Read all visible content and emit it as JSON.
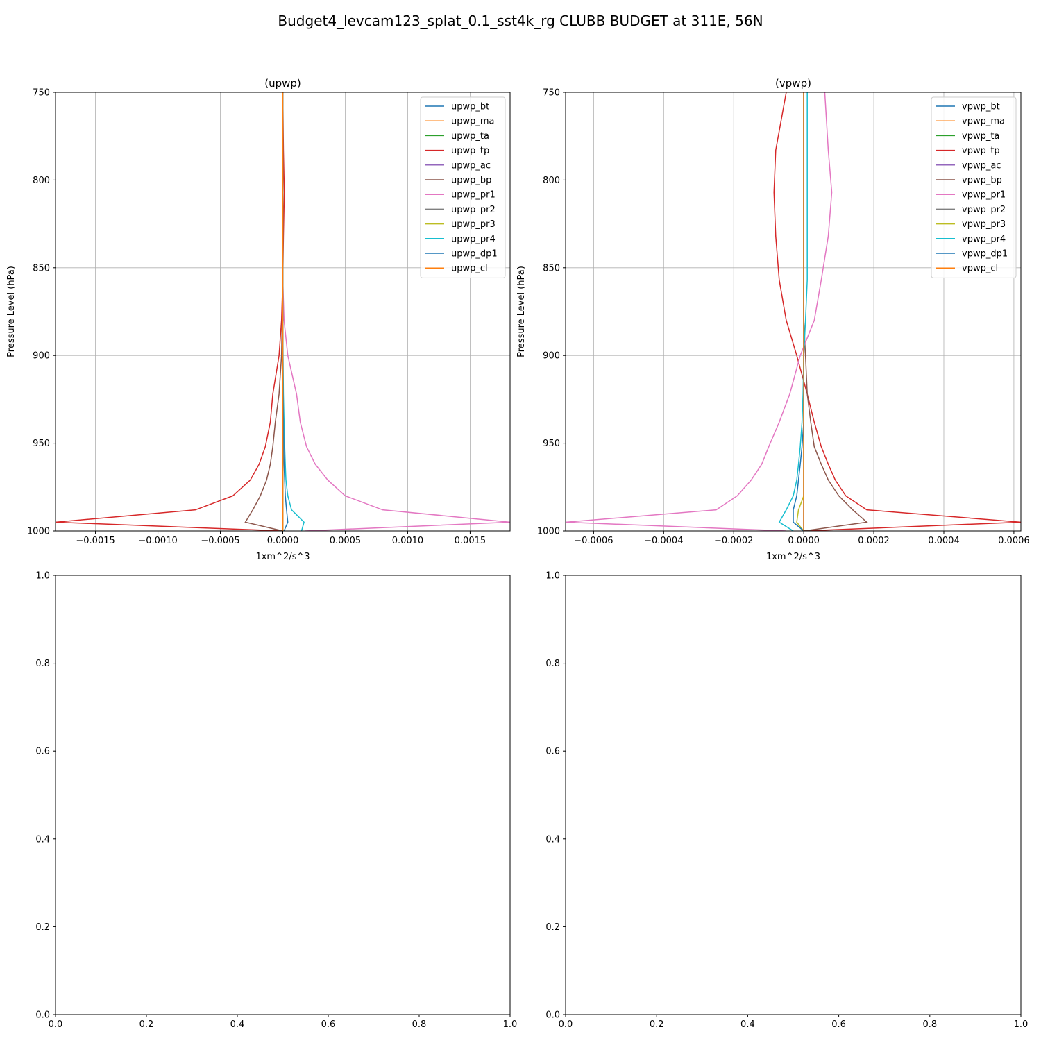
{
  "figure": {
    "title": "Budget4_levcam123_splat_0.1_sst4k_rg CLUBB BUDGET at 311E, 56N"
  },
  "chart_data": [
    {
      "type": "line",
      "title": "(upwp)",
      "xlabel": "1xm^2/s^3",
      "ylabel": "Pressure Level (hPa)",
      "xlim": [
        -0.00182,
        0.00182
      ],
      "ylim": [
        1000,
        750
      ],
      "y_inverted": true,
      "grid": true,
      "legend_position": "top-right",
      "xticks": [
        -0.0015,
        -0.001,
        -0.0005,
        0,
        0.0005,
        0.001,
        0.0015
      ],
      "xtick_labels": [
        "−0.0015",
        "−0.0010",
        "−0.0005",
        "0.0000",
        "0.0005",
        "0.0010",
        "0.0015"
      ],
      "yticks": [
        750,
        800,
        850,
        900,
        950,
        1000
      ],
      "ytick_labels": [
        "750",
        "800",
        "850",
        "900",
        "950",
        "1000"
      ],
      "levels": [
        750,
        783,
        807,
        832,
        857,
        880,
        900,
        922,
        938,
        952,
        962,
        971,
        980,
        988,
        995,
        1000
      ],
      "series": [
        {
          "name": "upwp_bt",
          "color": "#1f77b4",
          "values": [
            0,
            0,
            0,
            0,
            0,
            0,
            0,
            0,
            0,
            0,
            0,
            0,
            0,
            0,
            0,
            0
          ]
        },
        {
          "name": "upwp_ma",
          "color": "#ff7f0e",
          "values": [
            0,
            0,
            0,
            0,
            0,
            0,
            0,
            0,
            0,
            0,
            0,
            0,
            0,
            0,
            0,
            0
          ]
        },
        {
          "name": "upwp_ta",
          "color": "#2ca02c",
          "values": [
            0,
            0,
            0,
            0,
            0,
            0,
            0,
            0,
            0,
            0,
            0,
            0,
            0,
            0,
            0,
            0
          ]
        },
        {
          "name": "upwp_tp",
          "color": "#d62728",
          "values": [
            0,
            5e-06,
            1.2e-05,
            5e-06,
            0,
            -1e-05,
            -3e-05,
            -8e-05,
            -0.0001,
            -0.00014,
            -0.00019,
            -0.00026,
            -0.0004,
            -0.0007,
            -0.00182,
            0
          ]
        },
        {
          "name": "upwp_ac",
          "color": "#9467bd",
          "values": [
            0,
            0,
            0,
            0,
            0,
            0,
            0,
            0,
            0,
            0,
            0,
            0,
            0,
            0,
            0,
            0
          ]
        },
        {
          "name": "upwp_bp",
          "color": "#8c564b",
          "values": [
            0,
            0,
            0,
            0,
            0,
            -5e-06,
            -1e-05,
            -3e-05,
            -6e-05,
            -8e-05,
            -0.0001,
            -0.00013,
            -0.00018,
            -0.00024,
            -0.0003,
            0
          ]
        },
        {
          "name": "upwp_pr1",
          "color": "#e377c2",
          "values": [
            0,
            0,
            0,
            0,
            0,
            1e-05,
            4e-05,
            0.00011,
            0.00014,
            0.00019,
            0.00026,
            0.00036,
            0.0005,
            0.0008,
            0.00182,
            0.00018
          ]
        },
        {
          "name": "upwp_pr2",
          "color": "#7f7f7f",
          "values": [
            0,
            0,
            0,
            0,
            0,
            0,
            0,
            0,
            0,
            0,
            0,
            0,
            0,
            0,
            0,
            0
          ]
        },
        {
          "name": "upwp_pr3",
          "color": "#bcbd22",
          "values": [
            0,
            0,
            0,
            0,
            0,
            0,
            0,
            0,
            0,
            0,
            0,
            0,
            0,
            0,
            0,
            0
          ]
        },
        {
          "name": "upwp_pr4",
          "color": "#17becf",
          "values": [
            0,
            0,
            0,
            0,
            0,
            0,
            2e-06,
            5e-06,
            1e-05,
            1.5e-05,
            2e-05,
            2.5e-05,
            4e-05,
            7e-05,
            0.00017,
            0.00015
          ]
        },
        {
          "name": "upwp_dp1",
          "color": "#1f77b4",
          "values": [
            0,
            0,
            0,
            0,
            0,
            0,
            0,
            2e-06,
            5e-06,
            8e-06,
            1e-05,
            1.5e-05,
            2e-05,
            3e-05,
            4e-05,
            1e-05
          ]
        },
        {
          "name": "upwp_cl",
          "color": "#ff7f0e",
          "values": [
            0,
            0,
            0,
            0,
            0,
            0,
            0,
            0,
            0,
            0,
            0,
            0,
            0,
            0,
            0,
            0
          ]
        }
      ]
    },
    {
      "type": "line",
      "title": "(vpwp)",
      "xlabel": "1xm^2/s^3",
      "ylabel": "Pressure Level (hPa)",
      "xlim": [
        -0.00068,
        0.00062
      ],
      "ylim": [
        1000,
        750
      ],
      "y_inverted": true,
      "grid": true,
      "legend_position": "top-right",
      "xticks": [
        -0.0006,
        -0.0004,
        -0.0002,
        0,
        0.0002,
        0.0004,
        0.0006
      ],
      "xtick_labels": [
        "−0.0006",
        "−0.0004",
        "−0.0002",
        "0.0000",
        "0.0002",
        "0.0004",
        "0.0006"
      ],
      "yticks": [
        750,
        800,
        850,
        900,
        950,
        1000
      ],
      "ytick_labels": [
        "750",
        "800",
        "850",
        "900",
        "950",
        "1000"
      ],
      "levels": [
        750,
        783,
        807,
        832,
        857,
        880,
        900,
        922,
        938,
        952,
        962,
        971,
        980,
        988,
        995,
        1000
      ],
      "series": [
        {
          "name": "vpwp_bt",
          "color": "#1f77b4",
          "values": [
            0,
            0,
            0,
            0,
            0,
            0,
            0,
            0,
            0,
            0,
            0,
            0,
            0,
            0,
            0,
            0
          ]
        },
        {
          "name": "vpwp_ma",
          "color": "#ff7f0e",
          "values": [
            0,
            0,
            0,
            0,
            0,
            0,
            0,
            0,
            0,
            0,
            0,
            0,
            0,
            0,
            0,
            0
          ]
        },
        {
          "name": "vpwp_ta",
          "color": "#2ca02c",
          "values": [
            0,
            0,
            0,
            0,
            0,
            0,
            0,
            0,
            0,
            0,
            0,
            0,
            0,
            0,
            0,
            0
          ]
        },
        {
          "name": "vpwp_tp",
          "color": "#d62728",
          "values": [
            -5e-05,
            -8e-05,
            -8.5e-05,
            -8e-05,
            -7e-05,
            -5e-05,
            -2e-05,
            1e-05,
            3e-05,
            5e-05,
            7e-05,
            9e-05,
            0.00012,
            0.00018,
            0.00062,
            0
          ]
        },
        {
          "name": "vpwp_ac",
          "color": "#9467bd",
          "values": [
            0,
            0,
            0,
            0,
            0,
            0,
            0,
            0,
            0,
            0,
            0,
            0,
            0,
            0,
            0,
            0
          ]
        },
        {
          "name": "vpwp_bp",
          "color": "#8c564b",
          "values": [
            0,
            0,
            0,
            0,
            0,
            0,
            5e-06,
            1e-05,
            2e-05,
            3e-05,
            5e-05,
            7e-05,
            0.0001,
            0.00014,
            0.00018,
            0
          ]
        },
        {
          "name": "vpwp_pr1",
          "color": "#e377c2",
          "values": [
            6e-05,
            7e-05,
            8e-05,
            7e-05,
            5e-05,
            3e-05,
            -1e-05,
            -4e-05,
            -7e-05,
            -0.0001,
            -0.00012,
            -0.00015,
            -0.00019,
            -0.00025,
            -0.00068,
            -5e-05
          ]
        },
        {
          "name": "vpwp_pr2",
          "color": "#7f7f7f",
          "values": [
            0,
            0,
            0,
            0,
            0,
            0,
            0,
            0,
            0,
            0,
            0,
            0,
            0,
            0,
            0,
            0
          ]
        },
        {
          "name": "vpwp_pr3",
          "color": "#bcbd22",
          "values": [
            0,
            0,
            0,
            0,
            0,
            0,
            0,
            0,
            0,
            0,
            0,
            0,
            0,
            -1.5e-05,
            -2e-05,
            0
          ]
        },
        {
          "name": "vpwp_pr4",
          "color": "#17becf",
          "values": [
            1e-05,
            1e-05,
            1e-05,
            1e-05,
            1e-05,
            5e-06,
            0,
            -2e-06,
            -5e-06,
            -1e-05,
            -1.5e-05,
            -2e-05,
            -3e-05,
            -5e-05,
            -7e-05,
            -3e-05
          ]
        },
        {
          "name": "vpwp_dp1",
          "color": "#1f77b4",
          "values": [
            0,
            0,
            0,
            0,
            0,
            0,
            0,
            0,
            0,
            -5e-06,
            -1e-05,
            -1.5e-05,
            -2e-05,
            -3e-05,
            -3e-05,
            0
          ]
        },
        {
          "name": "vpwp_cl",
          "color": "#ff7f0e",
          "values": [
            0,
            0,
            0,
            0,
            0,
            0,
            0,
            0,
            0,
            0,
            0,
            0,
            0,
            0,
            0,
            0
          ]
        }
      ]
    },
    {
      "type": "line",
      "title": "",
      "xlim": [
        0,
        1
      ],
      "ylim": [
        0,
        1
      ],
      "grid": false,
      "xticks": [
        0,
        0.2,
        0.4,
        0.6,
        0.8,
        1
      ],
      "xtick_labels": [
        "0.0",
        "0.2",
        "0.4",
        "0.6",
        "0.8",
        "1.0"
      ],
      "yticks": [
        0,
        0.2,
        0.4,
        0.6,
        0.8,
        1
      ],
      "ytick_labels": [
        "0.0",
        "0.2",
        "0.4",
        "0.6",
        "0.8",
        "1.0"
      ],
      "series": []
    },
    {
      "type": "line",
      "title": "",
      "xlim": [
        0,
        1
      ],
      "ylim": [
        0,
        1
      ],
      "grid": false,
      "xticks": [
        0,
        0.2,
        0.4,
        0.6,
        0.8,
        1
      ],
      "xtick_labels": [
        "0.0",
        "0.2",
        "0.4",
        "0.6",
        "0.8",
        "1.0"
      ],
      "yticks": [
        0,
        0.2,
        0.4,
        0.6,
        0.8,
        1
      ],
      "ytick_labels": [
        "0.0",
        "0.2",
        "0.4",
        "0.6",
        "0.8",
        "1.0"
      ],
      "series": []
    }
  ]
}
